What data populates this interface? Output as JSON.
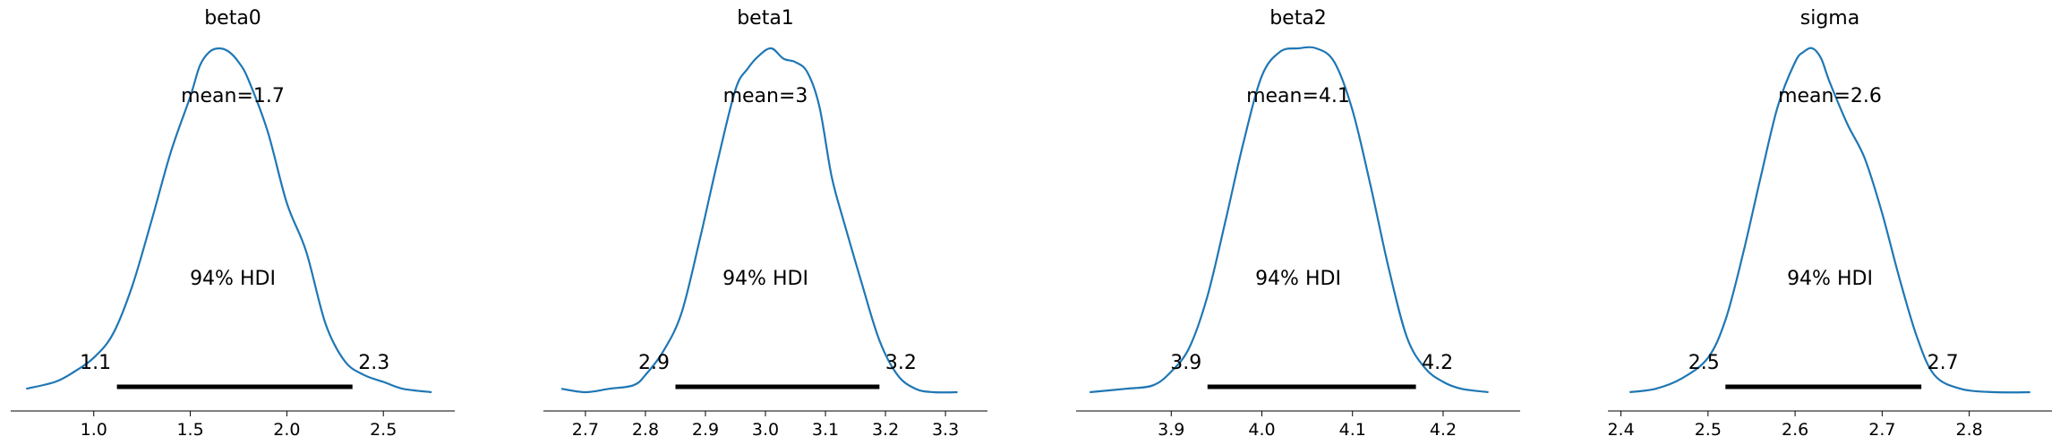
{
  "figure": {
    "style": {
      "curve_color": "#1f77b4",
      "hdi_color": "#000000",
      "axis_color": "#000000"
    }
  },
  "chart_data": [
    {
      "type": "density",
      "title": "beta0",
      "mean_label": "mean=1.7",
      "hdi_label": "94% HDI",
      "hdi": {
        "low": 1.12,
        "high": 2.34,
        "low_label": "1.1",
        "high_label": "2.3"
      },
      "xlim": [
        0.57,
        2.87
      ],
      "ticks": [
        1.0,
        1.5,
        2.0,
        2.5
      ],
      "tick_labels": [
        "1.0",
        "1.5",
        "2.0",
        "2.5"
      ],
      "density": {
        "x": [
          0.65,
          0.8,
          0.9,
          1.0,
          1.1,
          1.2,
          1.3,
          1.4,
          1.5,
          1.55,
          1.6,
          1.65,
          1.7,
          1.75,
          1.8,
          1.9,
          2.0,
          2.1,
          2.2,
          2.3,
          2.4,
          2.5,
          2.6,
          2.75
        ],
        "y": [
          0.01,
          0.03,
          0.06,
          0.1,
          0.17,
          0.31,
          0.5,
          0.7,
          0.86,
          0.95,
          0.99,
          1.0,
          0.99,
          0.96,
          0.91,
          0.76,
          0.55,
          0.41,
          0.2,
          0.09,
          0.05,
          0.03,
          0.01,
          0.0
        ]
      }
    },
    {
      "type": "density",
      "title": "beta1",
      "mean_label": "mean=3",
      "hdi_label": "94% HDI",
      "hdi": {
        "low": 2.85,
        "high": 3.19,
        "low_label": "2.9",
        "high_label": "3.2"
      },
      "xlim": [
        2.63,
        3.37
      ],
      "ticks": [
        2.7,
        2.8,
        2.9,
        3.0,
        3.1,
        3.2,
        3.3
      ],
      "tick_labels": [
        "2.7",
        "2.8",
        "2.9",
        "3.0",
        "3.1",
        "3.2",
        "3.3"
      ],
      "density": {
        "x": [
          2.66,
          2.7,
          2.74,
          2.78,
          2.8,
          2.83,
          2.86,
          2.89,
          2.92,
          2.95,
          2.97,
          2.99,
          3.01,
          3.03,
          3.05,
          3.07,
          3.09,
          3.11,
          3.13,
          3.16,
          3.19,
          3.22,
          3.25,
          3.28,
          3.32
        ],
        "y": [
          0.01,
          0.0,
          0.01,
          0.02,
          0.05,
          0.12,
          0.23,
          0.44,
          0.67,
          0.88,
          0.94,
          0.98,
          1.0,
          0.97,
          0.96,
          0.93,
          0.83,
          0.63,
          0.5,
          0.32,
          0.15,
          0.05,
          0.01,
          0.0,
          0.0
        ]
      }
    },
    {
      "type": "density",
      "title": "beta2",
      "mean_label": "mean=4.1",
      "hdi_label": "94% HDI",
      "hdi": {
        "low": 3.94,
        "high": 4.17,
        "low_label": "3.9",
        "high_label": "4.2"
      },
      "xlim": [
        3.795,
        4.285
      ],
      "ticks": [
        3.9,
        4.0,
        4.1,
        4.2
      ],
      "tick_labels": [
        "3.9",
        "4.0",
        "4.1",
        "4.2"
      ],
      "density": {
        "x": [
          3.81,
          3.85,
          3.88,
          3.9,
          3.92,
          3.94,
          3.96,
          3.98,
          4.0,
          4.02,
          4.04,
          4.06,
          4.08,
          4.1,
          4.12,
          4.14,
          4.16,
          4.18,
          4.2,
          4.22,
          4.25
        ],
        "y": [
          0.0,
          0.01,
          0.02,
          0.06,
          0.13,
          0.28,
          0.5,
          0.73,
          0.92,
          0.99,
          1.0,
          1.0,
          0.96,
          0.82,
          0.6,
          0.36,
          0.16,
          0.07,
          0.03,
          0.01,
          0.0
        ]
      }
    },
    {
      "type": "density",
      "title": "sigma",
      "mean_label": "mean=2.6",
      "hdi_label": "94% HDI",
      "hdi": {
        "low": 2.52,
        "high": 2.745,
        "low_label": "2.5",
        "high_label": "2.7"
      },
      "xlim": [
        2.385,
        2.895
      ],
      "ticks": [
        2.4,
        2.5,
        2.6,
        2.7,
        2.8
      ],
      "tick_labels": [
        "2.4",
        "2.5",
        "2.6",
        "2.7",
        "2.8"
      ],
      "density": {
        "x": [
          2.41,
          2.44,
          2.47,
          2.5,
          2.52,
          2.54,
          2.56,
          2.58,
          2.6,
          2.61,
          2.62,
          2.63,
          2.64,
          2.66,
          2.68,
          2.7,
          2.72,
          2.74,
          2.76,
          2.79,
          2.83,
          2.87
        ],
        "y": [
          0.0,
          0.01,
          0.04,
          0.1,
          0.21,
          0.4,
          0.62,
          0.83,
          0.96,
          0.99,
          1.0,
          0.97,
          0.9,
          0.78,
          0.68,
          0.52,
          0.33,
          0.16,
          0.05,
          0.01,
          0.0,
          0.0
        ]
      }
    }
  ]
}
